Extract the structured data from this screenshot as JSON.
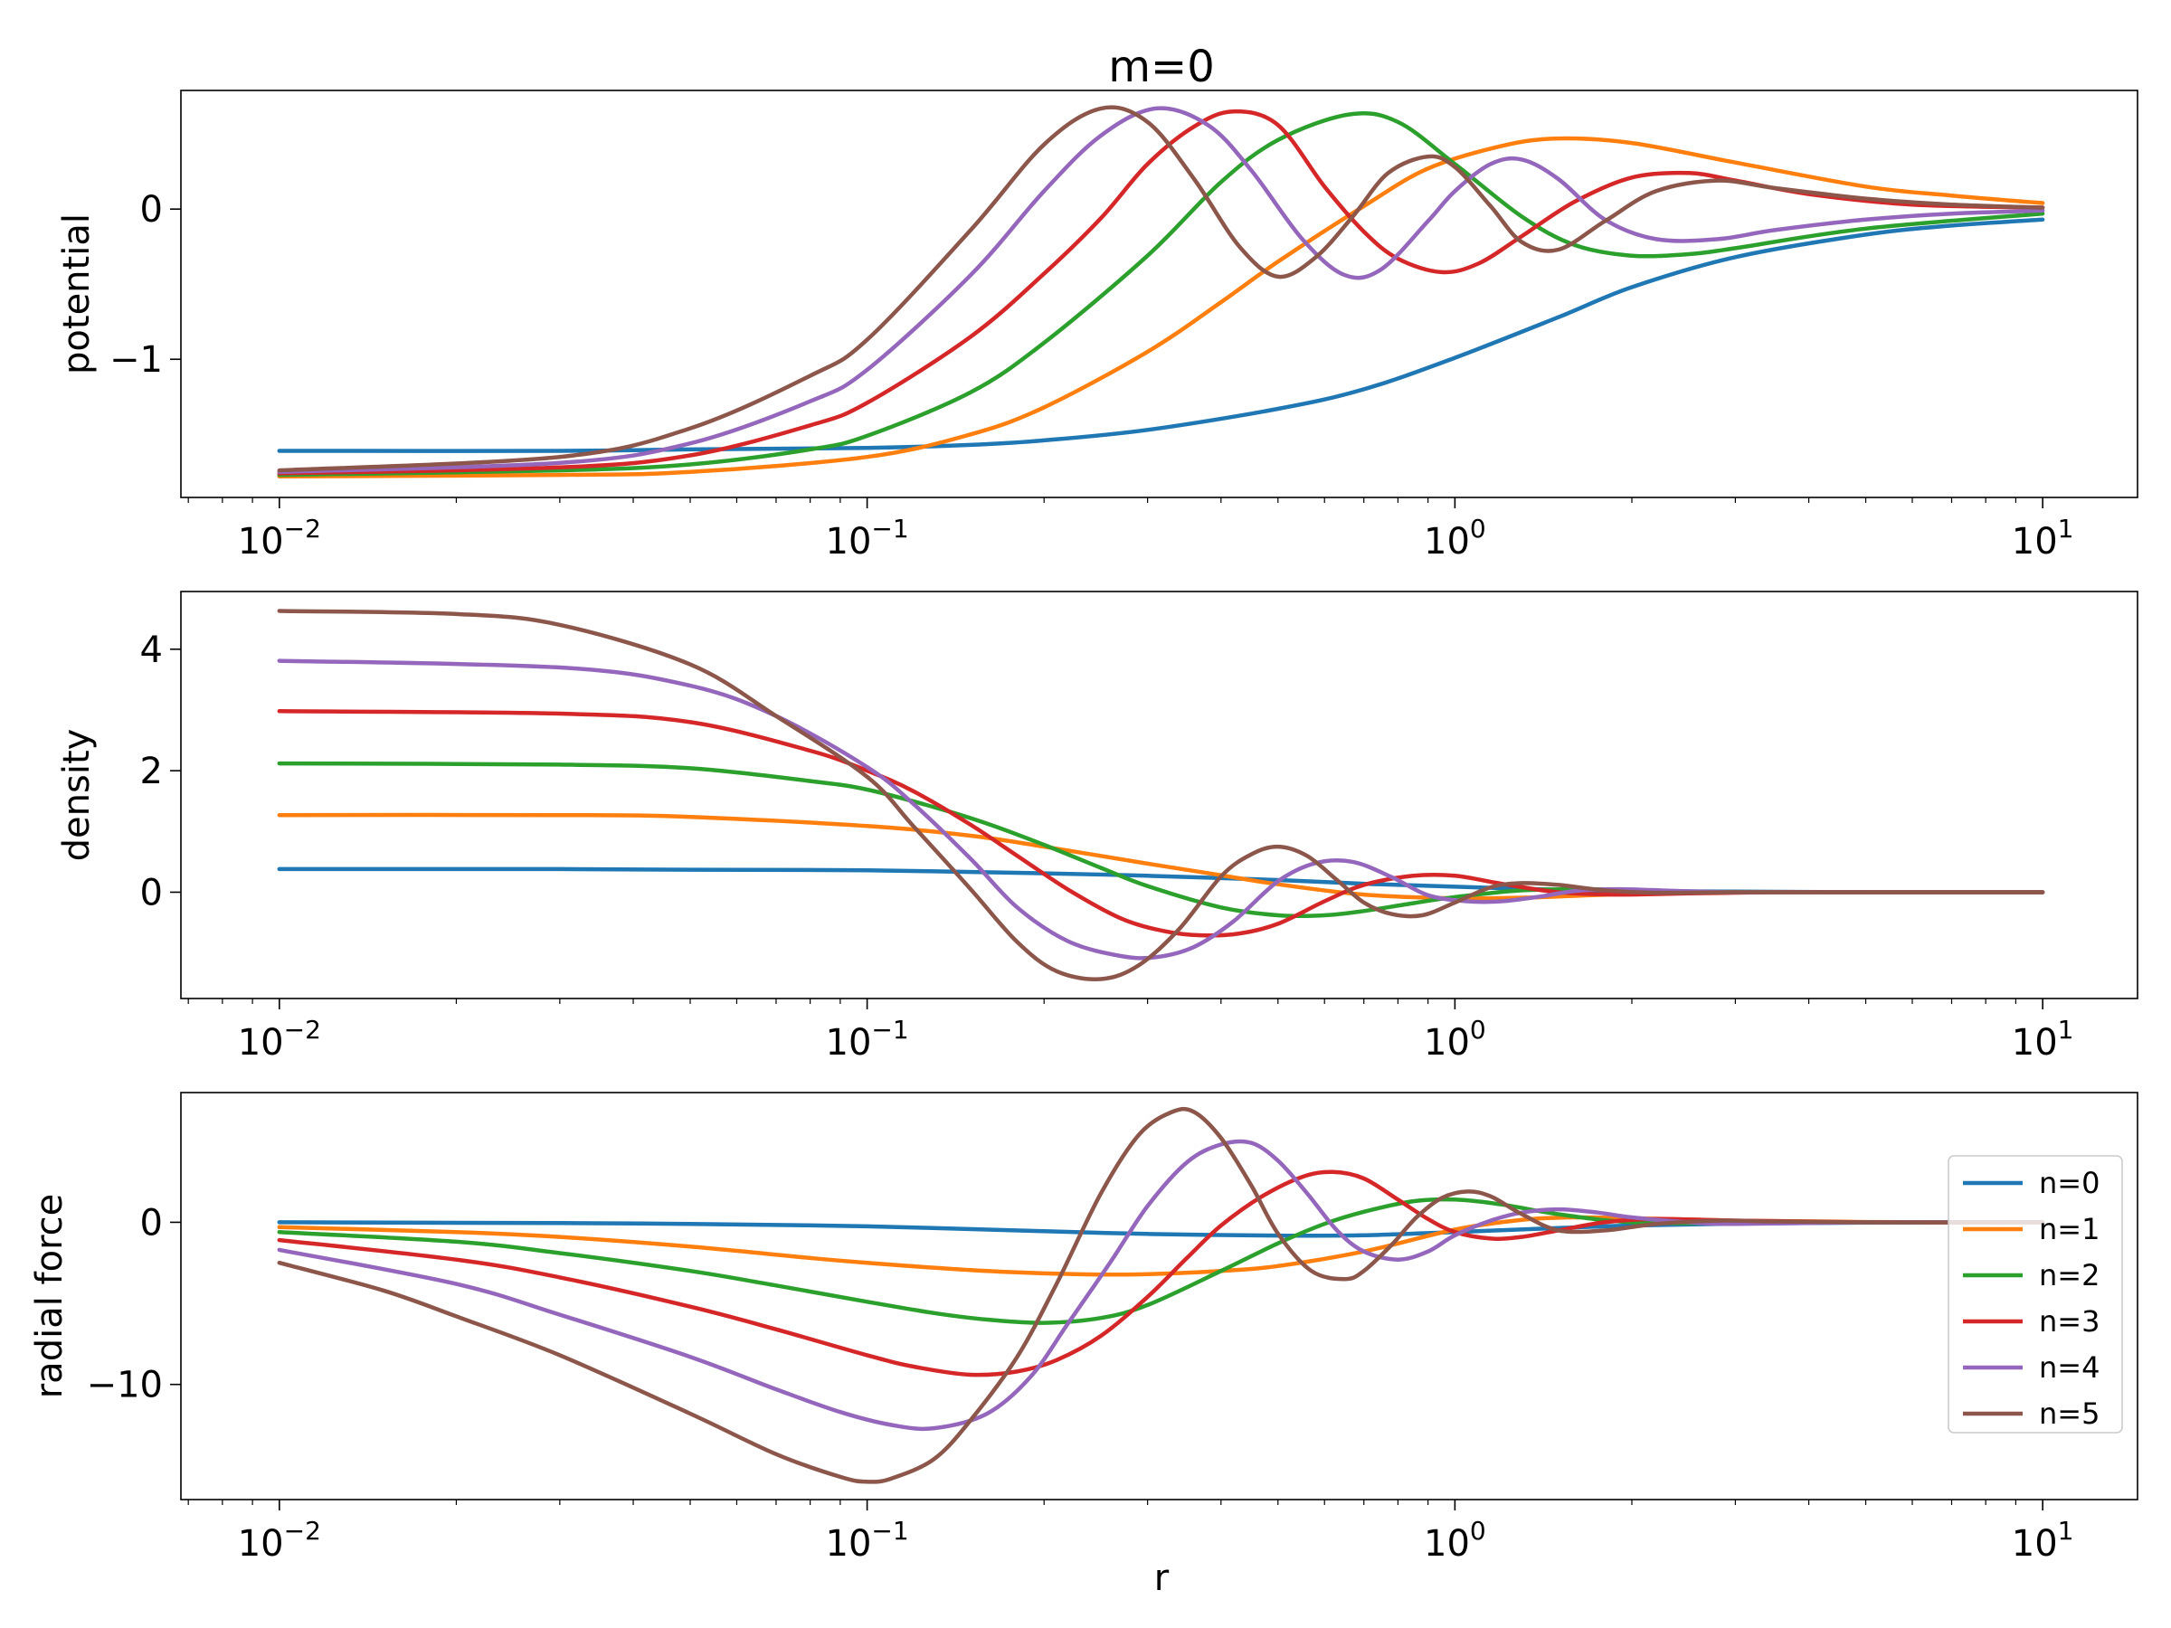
{
  "figure": {
    "title": "m=0",
    "xlabel": "r"
  },
  "colors": {
    "n0": "#1f77b4",
    "n1": "#ff7f0e",
    "n2": "#2ca02c",
    "n3": "#d62728",
    "n4": "#9467bd",
    "n5": "#8c564b"
  },
  "chart_data": [
    {
      "type": "line",
      "title": "m=0",
      "xlabel": "",
      "ylabel": "potential",
      "xscale": "log",
      "xlim": [
        0.0068,
        14.5
      ],
      "ylim": [
        -1.92,
        0.79
      ],
      "x_ticks": [
        {
          "base": "10",
          "exp": "−2",
          "value": 0.01
        },
        {
          "base": "10",
          "exp": "−1",
          "value": 0.1
        },
        {
          "base": "10",
          "exp": "0",
          "value": 1
        },
        {
          "base": "10",
          "exp": "1",
          "value": 10
        }
      ],
      "y_ticks": [
        {
          "label": "0",
          "value": 0
        },
        {
          "label": "−1",
          "value": -1
        }
      ],
      "series": [
        {
          "name": "n=0",
          "color": "#1f77b4",
          "x": [
            0.01,
            0.03,
            0.05,
            0.1,
            0.15,
            0.2,
            0.3,
            0.5,
            0.7,
            1,
            1.5,
            2,
            3,
            5,
            7,
            10
          ],
          "y": [
            -1.61,
            -1.61,
            -1.6,
            -1.59,
            -1.57,
            -1.54,
            -1.47,
            -1.33,
            -1.2,
            -0.99,
            -0.72,
            -0.52,
            -0.32,
            -0.17,
            -0.11,
            -0.07
          ]
        },
        {
          "name": "n=1",
          "color": "#ff7f0e",
          "x": [
            0.01,
            0.03,
            0.05,
            0.1,
            0.15,
            0.2,
            0.3,
            0.4,
            0.5,
            0.7,
            0.9,
            1.2,
            1.5,
            2,
            3,
            5,
            7,
            10
          ],
          "y": [
            -1.78,
            -1.77,
            -1.75,
            -1.65,
            -1.5,
            -1.32,
            -0.95,
            -0.62,
            -0.35,
            0.02,
            0.27,
            0.42,
            0.47,
            0.44,
            0.31,
            0.15,
            0.09,
            0.04
          ]
        },
        {
          "name": "n=2",
          "color": "#2ca02c",
          "x": [
            0.01,
            0.03,
            0.05,
            0.08,
            0.1,
            0.15,
            0.2,
            0.3,
            0.4,
            0.5,
            0.66,
            0.8,
            1,
            1.3,
            1.6,
            2,
            2.5,
            3,
            5,
            10
          ],
          "y": [
            -1.77,
            -1.74,
            -1.7,
            -1.6,
            -1.51,
            -1.22,
            -0.89,
            -0.31,
            0.18,
            0.46,
            0.63,
            0.58,
            0.3,
            -0.05,
            -0.24,
            -0.31,
            -0.3,
            -0.26,
            -0.13,
            -0.03
          ]
        },
        {
          "name": "n=3",
          "color": "#d62728",
          "x": [
            0.01,
            0.03,
            0.05,
            0.08,
            0.1,
            0.15,
            0.2,
            0.25,
            0.3,
            0.36,
            0.42,
            0.5,
            0.6,
            0.7,
            0.8,
            0.95,
            1.1,
            1.3,
            1.6,
            2,
            2.5,
            3,
            4,
            6,
            10
          ],
          "y": [
            -1.76,
            -1.72,
            -1.64,
            -1.44,
            -1.29,
            -0.85,
            -0.43,
            -0.06,
            0.3,
            0.55,
            0.65,
            0.56,
            0.15,
            -0.15,
            -0.33,
            -0.42,
            -0.36,
            -0.18,
            0.05,
            0.21,
            0.24,
            0.19,
            0.1,
            0.03,
            0.01
          ]
        },
        {
          "name": "n=4",
          "color": "#9467bd",
          "x": [
            0.01,
            0.03,
            0.05,
            0.08,
            0.1,
            0.15,
            0.2,
            0.25,
            0.31,
            0.38,
            0.45,
            0.55,
            0.65,
            0.75,
            0.9,
            1,
            1.15,
            1.3,
            1.5,
            1.8,
            2.2,
            2.8,
            3.5,
            5,
            7,
            10
          ],
          "y": [
            -1.75,
            -1.69,
            -1.56,
            -1.28,
            -1.07,
            -0.44,
            0.12,
            0.49,
            0.67,
            0.56,
            0.26,
            -0.2,
            -0.44,
            -0.4,
            -0.08,
            0.12,
            0.3,
            0.33,
            0.2,
            -0.07,
            -0.2,
            -0.2,
            -0.14,
            -0.07,
            -0.03,
            -0.01
          ]
        },
        {
          "name": "n=5",
          "color": "#8c564b",
          "x": [
            0.01,
            0.03,
            0.05,
            0.08,
            0.1,
            0.15,
            0.2,
            0.25,
            0.3,
            0.36,
            0.43,
            0.5,
            0.58,
            0.67,
            0.77,
            0.9,
            1,
            1.15,
            1.3,
            1.5,
            1.8,
            2.2,
            2.8,
            3.5,
            5,
            7,
            10
          ],
          "y": [
            -1.74,
            -1.65,
            -1.46,
            -1.11,
            -0.87,
            -0.14,
            0.43,
            0.67,
            0.58,
            0.2,
            -0.25,
            -0.45,
            -0.32,
            -0.05,
            0.24,
            0.35,
            0.28,
            0.02,
            -0.22,
            -0.27,
            -0.08,
            0.12,
            0.19,
            0.14,
            0.07,
            0.03,
            0.01
          ]
        }
      ]
    },
    {
      "type": "line",
      "title": "",
      "xlabel": "",
      "ylabel": "density",
      "xscale": "log",
      "xlim": [
        0.0068,
        14.5
      ],
      "ylim": [
        -1.75,
        4.95
      ],
      "x_ticks": [
        {
          "base": "10",
          "exp": "−2",
          "value": 0.01
        },
        {
          "base": "10",
          "exp": "−1",
          "value": 0.1
        },
        {
          "base": "10",
          "exp": "0",
          "value": 1
        },
        {
          "base": "10",
          "exp": "1",
          "value": 10
        }
      ],
      "y_ticks": [
        {
          "label": "0",
          "value": 0
        },
        {
          "label": "2",
          "value": 2
        },
        {
          "label": "4",
          "value": 4
        }
      ],
      "series": [
        {
          "name": "n=0",
          "color": "#1f77b4",
          "x": [
            0.01,
            0.03,
            0.05,
            0.1,
            0.2,
            0.3,
            0.5,
            0.7,
            1,
            1.5,
            2,
            3,
            5,
            10
          ],
          "y": [
            0.38,
            0.38,
            0.37,
            0.36,
            0.31,
            0.27,
            0.2,
            0.14,
            0.09,
            0.04,
            0.02,
            0.01,
            0,
            0
          ]
        },
        {
          "name": "n=1",
          "color": "#ff7f0e",
          "x": [
            0.01,
            0.03,
            0.05,
            0.1,
            0.15,
            0.2,
            0.3,
            0.4,
            0.5,
            0.7,
            1,
            1.3,
            1.6,
            2,
            3,
            5,
            10
          ],
          "y": [
            1.27,
            1.27,
            1.24,
            1.09,
            0.93,
            0.75,
            0.47,
            0.28,
            0.13,
            -0.04,
            -0.1,
            -0.09,
            -0.06,
            -0.03,
            0,
            0,
            0
          ]
        },
        {
          "name": "n=2",
          "color": "#2ca02c",
          "x": [
            0.01,
            0.03,
            0.05,
            0.08,
            0.1,
            0.13,
            0.16,
            0.2,
            0.25,
            0.3,
            0.4,
            0.5,
            0.6,
            0.7,
            0.85,
            1,
            1.3,
            1.7,
            2.2,
            3,
            5,
            10
          ],
          "y": [
            2.12,
            2.1,
            2.04,
            1.83,
            1.69,
            1.4,
            1.13,
            0.78,
            0.4,
            0.1,
            -0.25,
            -0.38,
            -0.38,
            -0.31,
            -0.18,
            -0.08,
            0.03,
            0.05,
            0.02,
            0,
            0,
            0
          ]
        },
        {
          "name": "n=3",
          "color": "#d62728",
          "x": [
            0.01,
            0.03,
            0.05,
            0.08,
            0.1,
            0.12,
            0.15,
            0.18,
            0.22,
            0.27,
            0.32,
            0.37,
            0.43,
            0.5,
            0.6,
            0.7,
            0.85,
            1,
            1.2,
            1.5,
            1.9,
            2.5,
            3.5,
            5,
            10
          ],
          "y": [
            2.98,
            2.94,
            2.8,
            2.33,
            2,
            1.66,
            1.11,
            0.6,
            0.04,
            -0.43,
            -0.64,
            -0.71,
            -0.68,
            -0.52,
            -0.15,
            0.12,
            0.27,
            0.27,
            0.14,
            0,
            -0.04,
            -0.02,
            0,
            0,
            0
          ]
        },
        {
          "name": "n=4",
          "color": "#9467bd",
          "x": [
            0.01,
            0.03,
            0.05,
            0.07,
            0.1,
            0.12,
            0.15,
            0.18,
            0.22,
            0.27,
            0.31,
            0.36,
            0.42,
            0.5,
            0.58,
            0.67,
            0.78,
            0.9,
            1.05,
            1.2,
            1.4,
            1.6,
            1.9,
            2.4,
            3,
            5,
            10
          ],
          "y": [
            3.81,
            3.7,
            3.4,
            2.9,
            2.06,
            1.45,
            0.55,
            -0.25,
            -0.81,
            -1.05,
            -1.07,
            -0.9,
            -0.48,
            0.18,
            0.48,
            0.5,
            0.25,
            -0.05,
            -0.15,
            -0.15,
            -0.07,
            0.02,
            0.05,
            0.02,
            0,
            0,
            0
          ]
        },
        {
          "name": "n=5",
          "color": "#8c564b",
          "x": [
            0.01,
            0.02,
            0.03,
            0.05,
            0.07,
            0.1,
            0.12,
            0.15,
            0.18,
            0.21,
            0.25,
            0.29,
            0.34,
            0.4,
            0.45,
            0.5,
            0.56,
            0.63,
            0.7,
            0.78,
            0.88,
            1,
            1.15,
            1.3,
            1.5,
            1.8,
            2.2,
            3,
            5,
            10
          ],
          "y": [
            4.63,
            4.58,
            4.4,
            3.75,
            2.9,
            1.9,
            1.08,
            0.05,
            -0.82,
            -1.3,
            -1.43,
            -1.2,
            -0.6,
            0.26,
            0.62,
            0.75,
            0.6,
            0.2,
            -0.17,
            -0.36,
            -0.38,
            -0.17,
            0.08,
            0.15,
            0.12,
            0.03,
            -0.01,
            0,
            0,
            0
          ]
        }
      ]
    },
    {
      "type": "line",
      "title": "",
      "xlabel": "r",
      "ylabel": "radial force",
      "xscale": "log",
      "xlim": [
        0.0068,
        14.5
      ],
      "ylim": [
        -17.1,
        8
      ],
      "x_ticks": [
        {
          "base": "10",
          "exp": "−2",
          "value": 0.01
        },
        {
          "base": "10",
          "exp": "−1",
          "value": 0.1
        },
        {
          "base": "10",
          "exp": "0",
          "value": 1
        },
        {
          "base": "10",
          "exp": "1",
          "value": 10
        }
      ],
      "y_ticks": [
        {
          "label": "0",
          "value": 0
        },
        {
          "label": "−10",
          "value": -10
        }
      ],
      "legend": "center-right",
      "series": [
        {
          "name": "n=0",
          "color": "#1f77b4",
          "x": [
            0.01,
            0.03,
            0.05,
            0.1,
            0.2,
            0.3,
            0.5,
            0.7,
            1,
            1.5,
            2,
            3,
            5,
            10
          ],
          "y": [
            0,
            -0.05,
            -0.1,
            -0.25,
            -0.55,
            -0.72,
            -0.82,
            -0.8,
            -0.6,
            -0.35,
            -0.2,
            -0.08,
            -0.02,
            0
          ]
        },
        {
          "name": "n=1",
          "color": "#ff7f0e",
          "x": [
            0.01,
            0.02,
            0.03,
            0.05,
            0.08,
            0.1,
            0.15,
            0.2,
            0.25,
            0.3,
            0.4,
            0.5,
            0.7,
            1,
            1.3,
            1.6,
            2,
            3,
            5,
            10
          ],
          "y": [
            -0.3,
            -0.6,
            -0.9,
            -1.5,
            -2.2,
            -2.5,
            -2.95,
            -3.15,
            -3.22,
            -3.2,
            -3,
            -2.7,
            -1.8,
            -0.45,
            0.15,
            0.3,
            0.25,
            0.1,
            0.02,
            0
          ]
        },
        {
          "name": "n=2",
          "color": "#2ca02c",
          "x": [
            0.01,
            0.02,
            0.03,
            0.05,
            0.07,
            0.1,
            0.13,
            0.16,
            0.2,
            0.25,
            0.3,
            0.4,
            0.5,
            0.6,
            0.7,
            0.85,
            1,
            1.2,
            1.5,
            2,
            3,
            5,
            10
          ],
          "y": [
            -0.6,
            -1.2,
            -1.9,
            -3,
            -3.9,
            -4.9,
            -5.6,
            -6,
            -6.2,
            -5.9,
            -5.1,
            -3,
            -1.3,
            -0.1,
            0.65,
            1.3,
            1.4,
            1.1,
            0.5,
            0,
            -0.05,
            0,
            0
          ]
        },
        {
          "name": "n=3",
          "color": "#d62728",
          "x": [
            0.01,
            0.02,
            0.03,
            0.05,
            0.07,
            0.1,
            0.12,
            0.15,
            0.18,
            0.21,
            0.25,
            0.3,
            0.35,
            0.4,
            0.47,
            0.55,
            0.62,
            0.7,
            0.8,
            0.9,
            1,
            1.15,
            1.3,
            1.5,
            1.8,
            2.2,
            3,
            5,
            10
          ],
          "y": [
            -1.1,
            -2.3,
            -3.4,
            -5.2,
            -6.6,
            -8.2,
            -8.9,
            -9.4,
            -9.2,
            -8.5,
            -7,
            -4.6,
            -2.2,
            -0.2,
            1.6,
            2.8,
            3.1,
            2.7,
            1.4,
            0.2,
            -0.6,
            -1,
            -0.9,
            -0.5,
            0,
            0.2,
            0.1,
            0,
            0
          ]
        },
        {
          "name": "n=4",
          "color": "#9467bd",
          "x": [
            0.01,
            0.02,
            0.03,
            0.05,
            0.07,
            0.09,
            0.11,
            0.13,
            0.16,
            0.19,
            0.22,
            0.26,
            0.3,
            0.35,
            0.4,
            0.45,
            0.5,
            0.56,
            0.63,
            0.7,
            0.8,
            0.9,
            1,
            1.15,
            1.3,
            1.5,
            1.75,
            2,
            2.5,
            3,
            5,
            10
          ],
          "y": [
            -1.7,
            -3.8,
            -5.7,
            -8.3,
            -10.3,
            -11.7,
            -12.5,
            -12.7,
            -11.8,
            -9.5,
            -6.2,
            -2.4,
            1,
            3.7,
            4.8,
            4.9,
            3.8,
            1.8,
            -0.5,
            -1.8,
            -2.3,
            -1.8,
            -0.8,
            0.1,
            0.6,
            0.8,
            0.6,
            0.3,
            0,
            -0.1,
            0,
            0
          ]
        },
        {
          "name": "n=5",
          "color": "#8c564b",
          "x": [
            0.01,
            0.015,
            0.02,
            0.03,
            0.05,
            0.07,
            0.09,
            0.1,
            0.11,
            0.13,
            0.15,
            0.18,
            0.21,
            0.25,
            0.29,
            0.33,
            0.36,
            0.4,
            0.45,
            0.5,
            0.57,
            0.65,
            0.7,
            0.78,
            0.86,
            0.95,
            1.05,
            1.15,
            1.3,
            1.5,
            1.8,
            2.2,
            2.8,
            3.5,
            5,
            10
          ],
          "y": [
            -2.5,
            -4.2,
            -5.8,
            -8.2,
            -11.8,
            -14.3,
            -15.7,
            -16,
            -15.8,
            -14.6,
            -12.2,
            -8.3,
            -3.8,
            1.8,
            5.4,
            6.8,
            6.8,
            5.2,
            2.3,
            -0.7,
            -3,
            -3.5,
            -3,
            -1.4,
            0.3,
            1.5,
            1.9,
            1.6,
            0.5,
            -0.5,
            -0.5,
            -0.1,
            0.1,
            0.05,
            0,
            0
          ]
        }
      ]
    }
  ]
}
